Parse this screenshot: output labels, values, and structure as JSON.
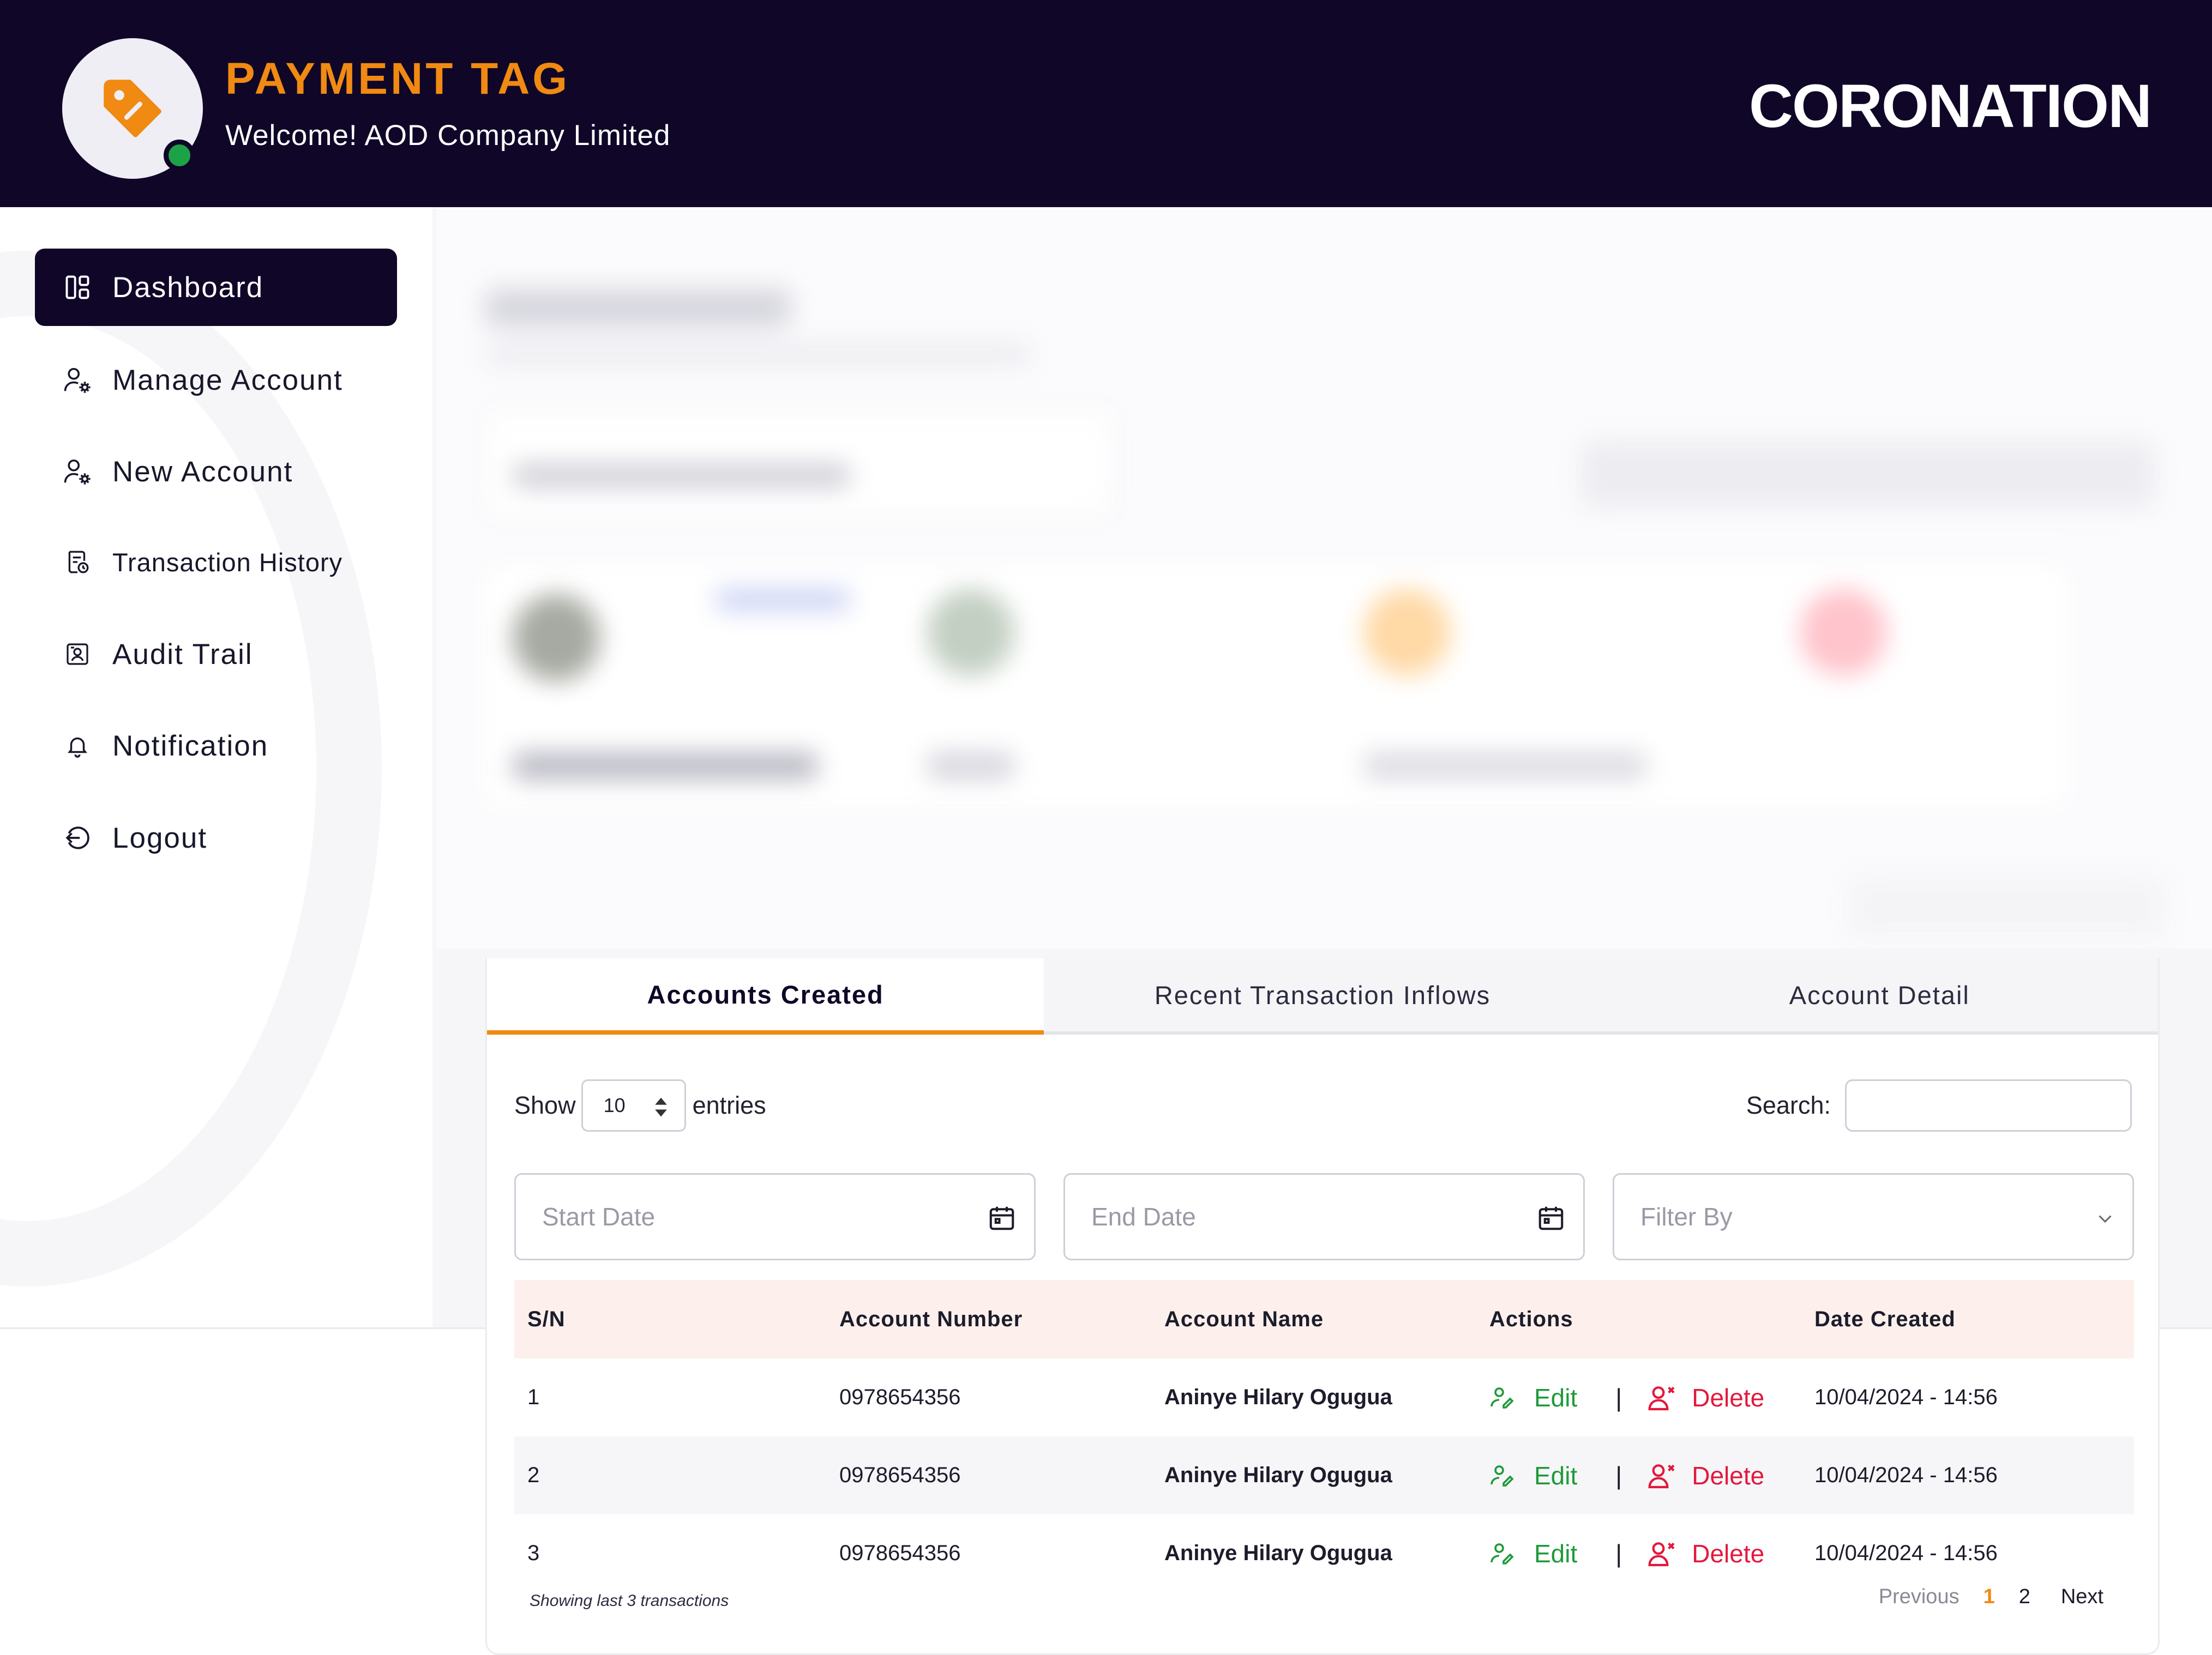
{
  "header": {
    "app_title": "PAYMENT TAG",
    "welcome": "Welcome! AOD Company Limited",
    "brand": "CORONATION",
    "brand_color": "#f08a12",
    "header_bg": "#100628"
  },
  "sidebar": {
    "items": [
      {
        "label": "Dashboard",
        "icon": "dashboard-icon",
        "active": true
      },
      {
        "label": "Manage Account",
        "icon": "user-gear-icon"
      },
      {
        "label": "New Account",
        "icon": "user-gear-icon"
      },
      {
        "label": "Transaction History",
        "icon": "receipt-clock-icon"
      },
      {
        "label": "Audit Trail",
        "icon": "audit-icon"
      },
      {
        "label": "Notification",
        "icon": "bell-icon"
      },
      {
        "label": "Logout",
        "icon": "logout-icon"
      }
    ]
  },
  "tabs": [
    {
      "label": "Accounts Created",
      "active": true
    },
    {
      "label": "Recent Transaction Inflows"
    },
    {
      "label": "Account Detail"
    }
  ],
  "controls": {
    "show_label": "Show",
    "entries_value": "10",
    "entries_label": "entries",
    "search_label": "Search:",
    "search_value": "",
    "start_date_placeholder": "Start Date",
    "end_date_placeholder": "End Date",
    "filter_placeholder": "Filter By"
  },
  "table": {
    "columns": [
      "S/N",
      "Account Number",
      "Account Name",
      "Actions",
      "Date Created"
    ],
    "edit_label": "Edit",
    "separator": "|",
    "delete_label": "Delete",
    "rows": [
      {
        "sn": "1",
        "account_number": "0978654356",
        "account_name": "Aninye Hilary Ogugua",
        "date_created": "10/04/2024 - 14:56"
      },
      {
        "sn": "2",
        "account_number": "0978654356",
        "account_name": "Aninye Hilary Ogugua",
        "date_created": "10/04/2024 - 14:56"
      },
      {
        "sn": "3",
        "account_number": "0978654356",
        "account_name": "Aninye Hilary Ogugua",
        "date_created": "10/04/2024 - 14:56"
      }
    ],
    "footnote": "Showing last 3 transactions"
  },
  "pagination": {
    "previous": "Previous",
    "current": "1",
    "page2": "2",
    "next": "Next"
  }
}
